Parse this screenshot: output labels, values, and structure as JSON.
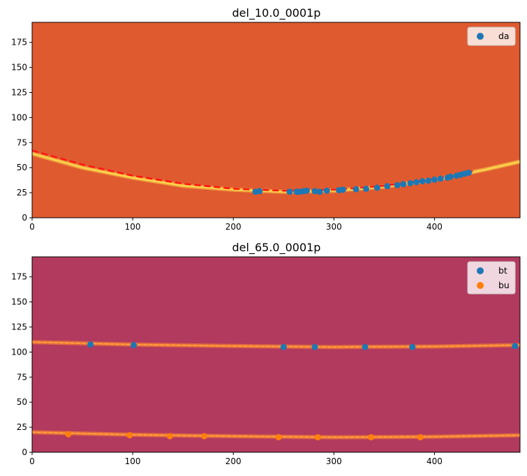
{
  "chart_data": [
    {
      "type": "scatter",
      "title": "del_10.0_0001p",
      "background_color": "#e05a2f",
      "ring_color": "#fbd44a",
      "fit_color": "#ff1111",
      "xlim": [
        0,
        485
      ],
      "ylim": [
        0,
        195
      ],
      "xticks": [
        0,
        100,
        200,
        300,
        400
      ],
      "yticks": [
        0,
        25,
        50,
        75,
        100,
        125,
        150,
        175
      ],
      "ring": {
        "x": [
          0,
          50,
          100,
          150,
          200,
          250,
          300,
          350,
          400,
          450,
          485
        ],
        "y": [
          64,
          50,
          40,
          32,
          28,
          26,
          27,
          31,
          38,
          48,
          56
        ]
      },
      "fit_line": {
        "x": [
          0,
          50,
          100,
          150,
          200,
          250,
          300,
          350,
          400,
          440
        ],
        "y": [
          67,
          53,
          42,
          34,
          29,
          27,
          28,
          32,
          39,
          47
        ]
      },
      "series": [
        {
          "name": "da",
          "color": "#1f77b4",
          "x": [
            222,
            226,
            256,
            263,
            266,
            270,
            273,
            281,
            286,
            293,
            305,
            309,
            322,
            332,
            343,
            353,
            363,
            369,
            376,
            382,
            388,
            394,
            400,
            406,
            413,
            416,
            422,
            426,
            430,
            434
          ],
          "y": [
            26,
            26.5,
            26,
            26,
            26,
            26.5,
            27,
            26.5,
            26,
            27,
            27.5,
            28,
            28.5,
            29,
            30,
            31.5,
            32.5,
            33.5,
            34.5,
            35.5,
            36.5,
            37,
            38,
            39,
            40,
            41,
            42,
            43,
            44,
            45
          ]
        }
      ],
      "legend_position": "upper-right"
    },
    {
      "type": "scatter",
      "title": "del_65.0_0001p",
      "background_color": "#b23a5e",
      "ring_color": "#ff8c2e",
      "fit_color": "#ff8c2e",
      "xlim": [
        0,
        485
      ],
      "ylim": [
        0,
        195
      ],
      "xticks": [
        0,
        100,
        200,
        300,
        400
      ],
      "yticks": [
        0,
        25,
        50,
        75,
        100,
        125,
        150,
        175
      ],
      "rings": [
        {
          "x": [
            0,
            100,
            200,
            300,
            400,
            485
          ],
          "y": [
            110,
            107.5,
            106,
            105,
            105.5,
            107
          ]
        },
        {
          "x": [
            0,
            100,
            200,
            300,
            400,
            485
          ],
          "y": [
            20,
            17.5,
            16,
            15,
            15.5,
            17
          ]
        }
      ],
      "series": [
        {
          "name": "bt",
          "color": "#1f77b4",
          "x": [
            58,
            101,
            250,
            281,
            331,
            378,
            480
          ],
          "y": [
            107.5,
            107,
            105,
            105,
            105,
            105,
            106
          ]
        },
        {
          "name": "bu",
          "color": "#ff7f0e",
          "x": [
            36,
            97,
            137,
            171,
            245,
            284,
            337,
            386
          ],
          "y": [
            18,
            17,
            16,
            16,
            15,
            15,
            15,
            15
          ]
        }
      ],
      "legend_position": "upper-right"
    }
  ]
}
